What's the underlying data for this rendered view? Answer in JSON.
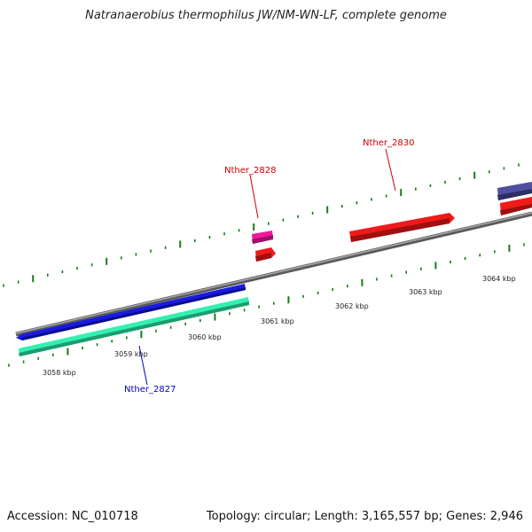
{
  "title": "Natranaerobius thermophilus JW/NM-WN-LF, complete genome",
  "footer": {
    "accession": "Accession: NC_010718",
    "summary": "Topology: circular; Length: 3,165,557 bp; Genes: 2,946"
  },
  "scale_labels": [
    "3058 kbp",
    "3059 kbp",
    "3060 kbp",
    "3061 kbp",
    "3062 kbp",
    "3063 kbp",
    "3064 kbp"
  ],
  "gene_labels": [
    {
      "text": "Nther_2828",
      "color": "#cc0000"
    },
    {
      "text": "Nther_2830",
      "color": "#cc0000"
    },
    {
      "text": "Nther_2827",
      "color": "#0000cc"
    }
  ],
  "colors": {
    "backbone": "#808080",
    "tick": "#1a7a1a",
    "blue": "#1a1ae6",
    "teal": "#33f0b0",
    "red": "#f01a1a",
    "pink": "#f01a99",
    "slate": "#5050a0"
  }
}
